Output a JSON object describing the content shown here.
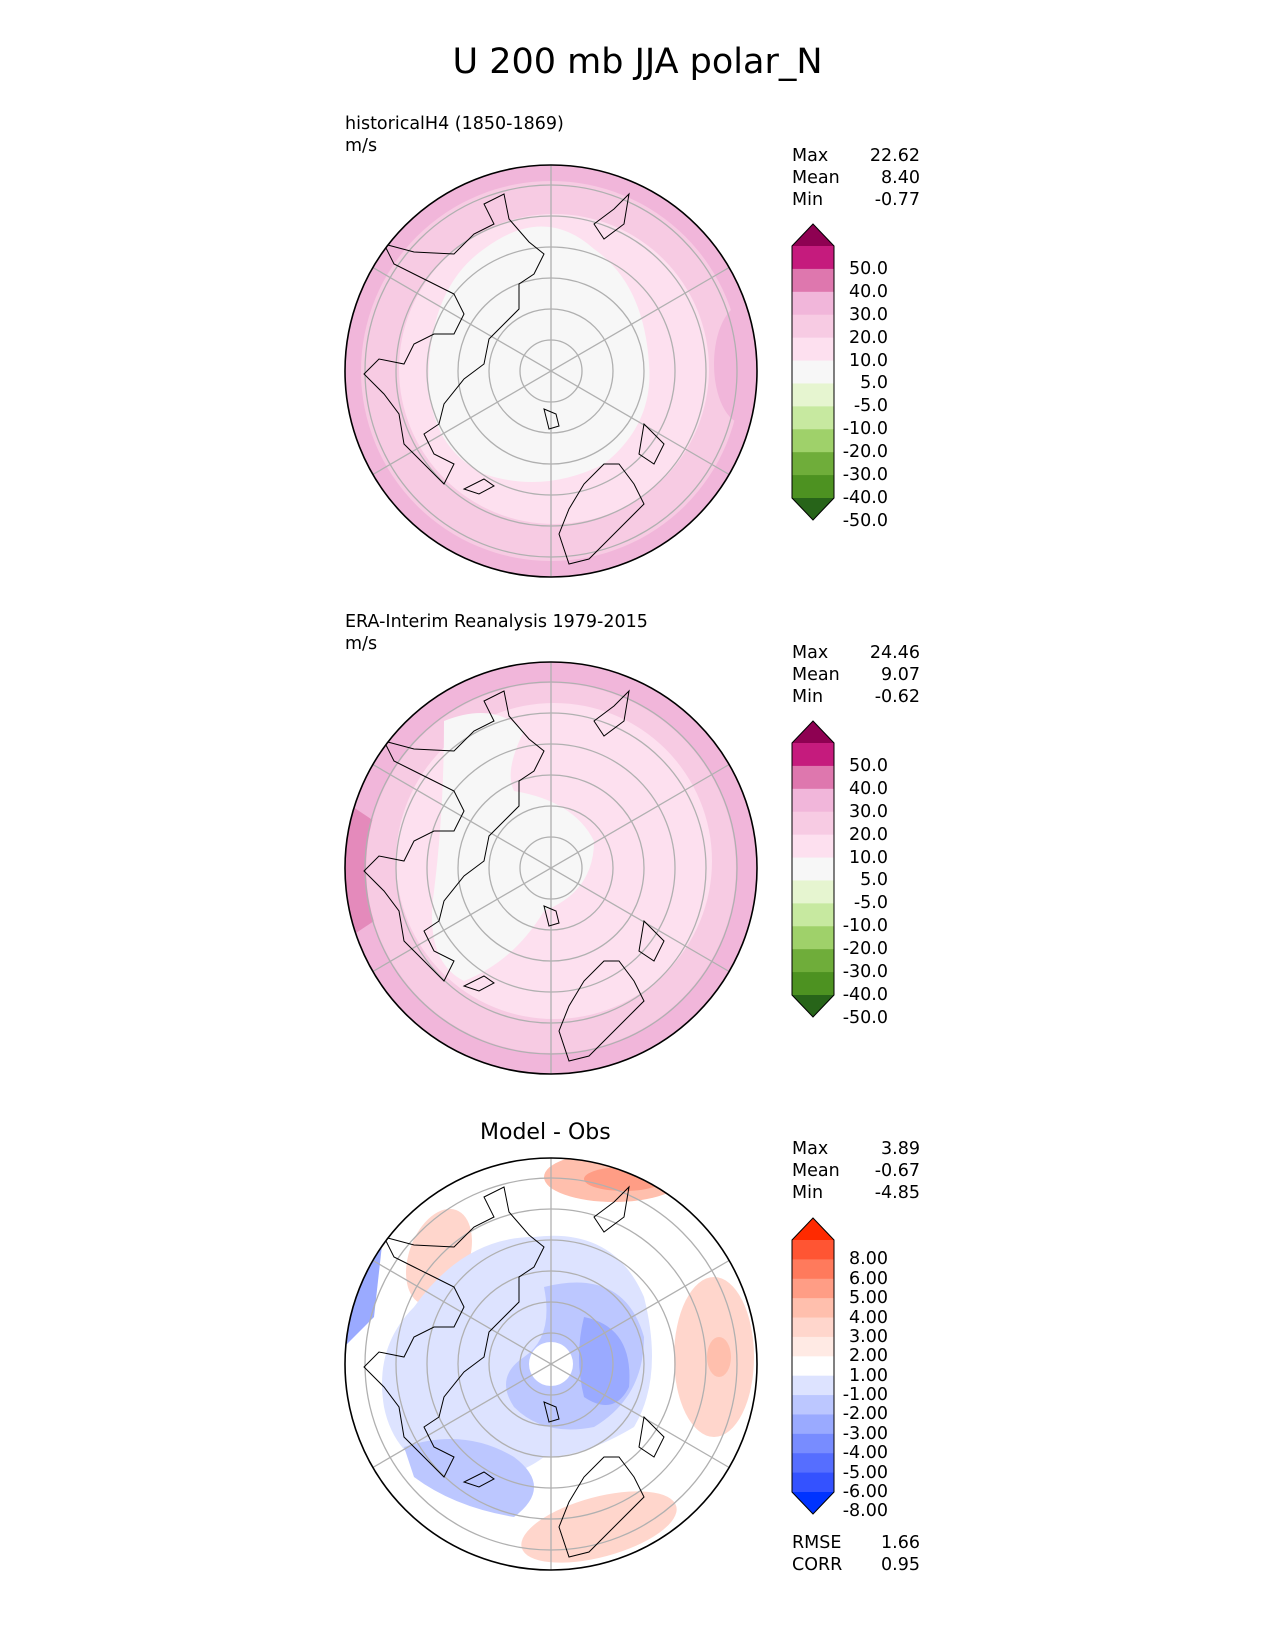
{
  "title": "U 200 mb JJA polar_N",
  "panels": [
    {
      "label_line1": "historicalH4 (1850-1869)",
      "label_line2": "m/s",
      "stats": [
        {
          "name": "Max",
          "value": "22.62"
        },
        {
          "name": "Mean",
          "value": "8.40"
        },
        {
          "name": "Min",
          "value": "-0.77"
        }
      ]
    },
    {
      "label_line1": "ERA-Interim Reanalysis 1979-2015",
      "label_line2": "m/s",
      "stats": [
        {
          "name": "Max",
          "value": "24.46"
        },
        {
          "name": "Mean",
          "value": "9.07"
        },
        {
          "name": "Min",
          "value": "-0.62"
        }
      ]
    },
    {
      "title": "Model - Obs",
      "stats": [
        {
          "name": "Max",
          "value": "3.89"
        },
        {
          "name": "Mean",
          "value": "-0.67"
        },
        {
          "name": "Min",
          "value": "-4.85"
        }
      ],
      "metrics": [
        {
          "name": "RMSE",
          "value": "1.66"
        },
        {
          "name": "CORR",
          "value": "0.95"
        }
      ]
    }
  ],
  "colorbars": {
    "field": {
      "labels": [
        "50.0",
        "40.0",
        "30.0",
        "20.0",
        "10.0",
        "5.0",
        "-5.0",
        "-10.0",
        "-20.0",
        "-30.0",
        "-40.0",
        "-50.0"
      ],
      "colors": [
        "#8e0152",
        "#c51b7d",
        "#de77ae",
        "#f1b6da",
        "#f7cbe3",
        "#fde0ef",
        "#f7f7f7",
        "#e6f5d0",
        "#c7e9a0",
        "#9fd16a",
        "#6fad3a",
        "#4d9221",
        "#276419"
      ]
    },
    "diff": {
      "labels": [
        "8.00",
        "6.00",
        "5.00",
        "4.00",
        "3.00",
        "2.00",
        "1.00",
        "-1.00",
        "-2.00",
        "-3.00",
        "-4.00",
        "-5.00",
        "-6.00",
        "-8.00"
      ],
      "colors": [
        "#ff2a00",
        "#ff5533",
        "#ff7a5c",
        "#ff9d85",
        "#ffbfad",
        "#ffd6cc",
        "#ffeae4",
        "#ffffff",
        "#dde3ff",
        "#bcc7ff",
        "#9aaaff",
        "#788cff",
        "#566eff",
        "#3452ff",
        "#0033ff"
      ]
    }
  },
  "chart_data": [
    {
      "type": "heatmap",
      "title": "historicalH4 (1850-1869)",
      "units": "m/s",
      "projection": "north polar stereographic",
      "max": 22.62,
      "mean": 8.4,
      "min": -0.77,
      "contour_levels": [
        -50,
        -40,
        -30,
        -20,
        -10,
        -5,
        5,
        10,
        20,
        30,
        40,
        50
      ]
    },
    {
      "type": "heatmap",
      "title": "ERA-Interim Reanalysis 1979-2015",
      "units": "m/s",
      "projection": "north polar stereographic",
      "max": 24.46,
      "mean": 9.07,
      "min": -0.62,
      "contour_levels": [
        -50,
        -40,
        -30,
        -20,
        -10,
        -5,
        5,
        10,
        20,
        30,
        40,
        50
      ]
    },
    {
      "type": "heatmap",
      "title": "Model - Obs",
      "units": "m/s",
      "projection": "north polar stereographic",
      "max": 3.89,
      "mean": -0.67,
      "min": -4.85,
      "rmse": 1.66,
      "corr": 0.95,
      "contour_levels": [
        -8,
        -6,
        -5,
        -4,
        -3,
        -2,
        -1,
        1,
        2,
        3,
        4,
        5,
        6,
        8
      ]
    }
  ]
}
